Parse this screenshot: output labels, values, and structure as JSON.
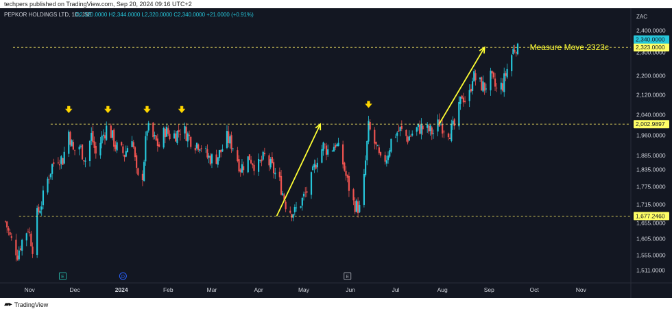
{
  "header": {
    "publisher": "techpers published on TradingView.com, Sep 20, 2024 09:16 UTC+2"
  },
  "symbol_line": {
    "symbol": "PEPKOR HOLDINGS LTD, 1D, JSE",
    "ohlc": "O2,320.0000  H2,344.0000  L2,320.0000  C2,340.0000  +21.0000 (+0.91%)"
  },
  "footer": {
    "brand": "TradingView",
    "brand_icon": "tradingview-logo-icon"
  },
  "colors": {
    "background": "#131722",
    "up": "#26c6da",
    "down": "#ef5350",
    "level_line": "#f5e663",
    "arrow": "#ffff33",
    "price_label_bg": "#ffff66",
    "last_price_bg": "#26c6da",
    "axis_text": "#d1d4dc"
  },
  "chart_data": {
    "type": "candlestick",
    "currency_label": "ZAC",
    "y_scale": "log",
    "ylim": [
      1480,
      2440
    ],
    "x_range": [
      "2023-10-16",
      "2024-11-25"
    ],
    "y_ticks": [
      "2,400.0000",
      "2,300.0000",
      "2,200.0000",
      "2,120.0000",
      "2,040.0000",
      "1,960.0000",
      "1,885.0000",
      "1,835.0000",
      "1,775.0000",
      "1,715.0000",
      "1,655.0000",
      "1,605.0000",
      "1,555.0000",
      "1,511.0000"
    ],
    "y_tick_values": [
      2400,
      2300,
      2200,
      2120,
      2040,
      1960,
      1885,
      1835,
      1775,
      1715,
      1655,
      1605,
      1555,
      1511
    ],
    "x_ticks": [
      {
        "label": "Nov",
        "date": "2023-11-01"
      },
      {
        "label": "Dec",
        "date": "2023-12-01"
      },
      {
        "label": "2024",
        "date": "2024-01-01",
        "bold": true
      },
      {
        "label": "Feb",
        "date": "2024-02-01"
      },
      {
        "label": "Mar",
        "date": "2024-03-01"
      },
      {
        "label": "Apr",
        "date": "2024-04-01"
      },
      {
        "label": "May",
        "date": "2024-05-01"
      },
      {
        "label": "Jun",
        "date": "2024-06-01"
      },
      {
        "label": "Jul",
        "date": "2024-07-01"
      },
      {
        "label": "Aug",
        "date": "2024-08-01"
      },
      {
        "label": "Sep",
        "date": "2024-09-01"
      },
      {
        "label": "Oct",
        "date": "2024-10-01"
      },
      {
        "label": "Nov",
        "date": "2024-11-01"
      }
    ],
    "horizontal_levels": [
      {
        "value": 2323,
        "label": "2,323.0000",
        "start": "2023-10-21"
      },
      {
        "value": 2002.9897,
        "label": "2,002.9897",
        "start": "2023-11-15"
      },
      {
        "value": 1677.246,
        "label": "1,677.2460",
        "start": "2023-10-25"
      }
    ],
    "last_price": {
      "value": 2340,
      "label": "2,340.0000"
    },
    "annotations": [
      {
        "text": "Measure Move 2323c",
        "date": "2024-09-28",
        "value": 2323
      }
    ],
    "arrows": [
      {
        "from": [
          "2024-04-13",
          1677
        ],
        "to": [
          "2024-05-12",
          2003
        ]
      },
      {
        "from": [
          "2024-07-30",
          2005
        ],
        "to": [
          "2024-08-29",
          2323
        ]
      }
    ],
    "markers": [
      {
        "date": "2023-11-27",
        "value": 2025
      },
      {
        "date": "2023-12-23",
        "value": 2025
      },
      {
        "date": "2024-01-18",
        "value": 2025
      },
      {
        "date": "2024-02-10",
        "value": 2025
      },
      {
        "date": "2024-06-13",
        "value": 2045
      }
    ],
    "event_badges": [
      {
        "letter": "E",
        "date": "2023-11-23",
        "color": "#26a69a"
      },
      {
        "letter": "D",
        "date": "2024-01-02",
        "color": "#2962ff"
      },
      {
        "letter": "E",
        "date": "2024-05-30",
        "color": "#9598a1"
      }
    ],
    "price_path": [
      [
        "2023-10-16",
        1660
      ],
      [
        "2023-10-19",
        1610
      ],
      [
        "2023-10-24",
        1560
      ],
      [
        "2023-10-27",
        1600
      ],
      [
        "2023-10-31",
        1640
      ],
      [
        "2023-11-03",
        1580
      ],
      [
        "2023-11-06",
        1680
      ],
      [
        "2023-11-09",
        1720
      ],
      [
        "2023-11-13",
        1800
      ],
      [
        "2023-11-16",
        1850
      ],
      [
        "2023-11-20",
        1880
      ],
      [
        "2023-11-23",
        1870
      ],
      [
        "2023-11-27",
        1975
      ],
      [
        "2023-11-30",
        1900
      ],
      [
        "2023-12-04",
        1920
      ],
      [
        "2023-12-08",
        1870
      ],
      [
        "2023-12-12",
        1960
      ],
      [
        "2023-12-15",
        1890
      ],
      [
        "2023-12-19",
        1950
      ],
      [
        "2023-12-23",
        2000
      ],
      [
        "2023-12-28",
        1920
      ],
      [
        "2024-01-03",
        1890
      ],
      [
        "2024-01-08",
        1960
      ],
      [
        "2024-01-11",
        1820
      ],
      [
        "2024-01-14",
        1760
      ],
      [
        "2024-01-18",
        1990
      ],
      [
        "2024-01-22",
        1950
      ],
      [
        "2024-01-26",
        1920
      ],
      [
        "2024-01-30",
        1980
      ],
      [
        "2024-02-03",
        1955
      ],
      [
        "2024-02-07",
        1970
      ],
      [
        "2024-02-10",
        1990
      ],
      [
        "2024-02-14",
        1960
      ],
      [
        "2024-02-18",
        1930
      ],
      [
        "2024-02-22",
        1930
      ],
      [
        "2024-02-27",
        1880
      ],
      [
        "2024-03-03",
        1870
      ],
      [
        "2024-03-07",
        1900
      ],
      [
        "2024-03-11",
        1950
      ],
      [
        "2024-03-15",
        1920
      ],
      [
        "2024-03-20",
        1840
      ],
      [
        "2024-03-26",
        1880
      ],
      [
        "2024-03-31",
        1840
      ],
      [
        "2024-04-05",
        1880
      ],
      [
        "2024-04-10",
        1840
      ],
      [
        "2024-04-15",
        1790
      ],
      [
        "2024-04-20",
        1700
      ],
      [
        "2024-04-25",
        1690
      ],
      [
        "2024-04-30",
        1730
      ],
      [
        "2024-05-05",
        1780
      ],
      [
        "2024-05-10",
        1880
      ],
      [
        "2024-05-14",
        1920
      ],
      [
        "2024-05-18",
        1900
      ],
      [
        "2024-05-22",
        1930
      ],
      [
        "2024-05-26",
        1880
      ],
      [
        "2024-05-30",
        1790
      ],
      [
        "2024-06-03",
        1720
      ],
      [
        "2024-06-07",
        1700
      ],
      [
        "2024-06-10",
        1800
      ],
      [
        "2024-06-13",
        1990
      ],
      [
        "2024-06-17",
        1930
      ],
      [
        "2024-06-21",
        1860
      ],
      [
        "2024-06-25",
        1880
      ],
      [
        "2024-06-29",
        1960
      ],
      [
        "2024-07-04",
        1980
      ],
      [
        "2024-07-09",
        1950
      ],
      [
        "2024-07-14",
        1980
      ],
      [
        "2024-07-18",
        1990
      ],
      [
        "2024-07-22",
        1980
      ],
      [
        "2024-07-26",
        1970
      ],
      [
        "2024-07-30",
        2010
      ],
      [
        "2024-08-02",
        1990
      ],
      [
        "2024-08-06",
        1975
      ],
      [
        "2024-08-10",
        2000
      ],
      [
        "2024-08-14",
        2120
      ],
      [
        "2024-08-18",
        2080
      ],
      [
        "2024-08-21",
        2200
      ],
      [
        "2024-08-25",
        2170
      ],
      [
        "2024-08-29",
        2150
      ],
      [
        "2024-09-02",
        2190
      ],
      [
        "2024-09-06",
        2140
      ],
      [
        "2024-09-10",
        2160
      ],
      [
        "2024-09-14",
        2250
      ],
      [
        "2024-09-17",
        2310
      ],
      [
        "2024-09-20",
        2340
      ]
    ]
  }
}
